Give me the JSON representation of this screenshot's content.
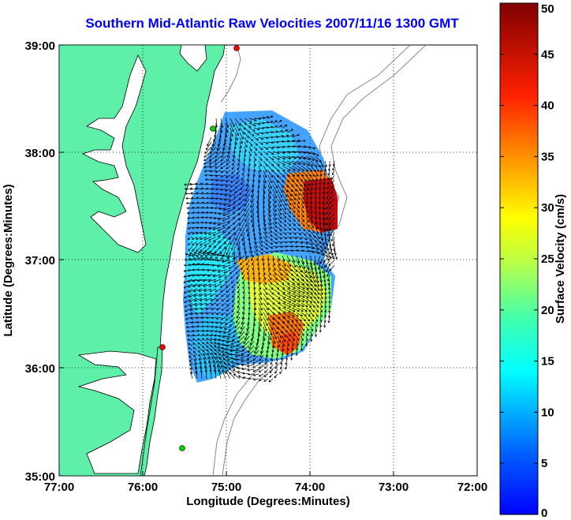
{
  "title": "Southern Mid-Atlantic Raw Velocities 2007/11/16 1300 GMT",
  "x_axis": {
    "label": "Longitude (Degrees:Minutes)",
    "ticks": [
      "77:00",
      "76:00",
      "75:00",
      "74:00",
      "73:00",
      "72:00"
    ]
  },
  "y_axis": {
    "label": "Latitude (Degrees:Minutes)",
    "ticks": [
      "39:00",
      "38:00",
      "37:00",
      "36:00",
      "35:00"
    ]
  },
  "colorbar": {
    "label": "Surface Velocity (cm/s)",
    "ticks": [
      "0",
      "5",
      "10",
      "15",
      "20",
      "25",
      "30",
      "35",
      "40",
      "45",
      "50"
    ],
    "min": 0,
    "max": 50,
    "colors": [
      "#0000ff",
      "#0080ff",
      "#00ffff",
      "#80ff80",
      "#ffff00",
      "#ff8000",
      "#ff0000",
      "#800000"
    ]
  },
  "land_color": "#5ef0a8",
  "grid": "dotted",
  "stations": [
    {
      "color": "#ff0000"
    },
    {
      "color": "#00cc00"
    },
    {
      "color": "#ff0000"
    },
    {
      "color": "#00cc00"
    }
  ]
}
